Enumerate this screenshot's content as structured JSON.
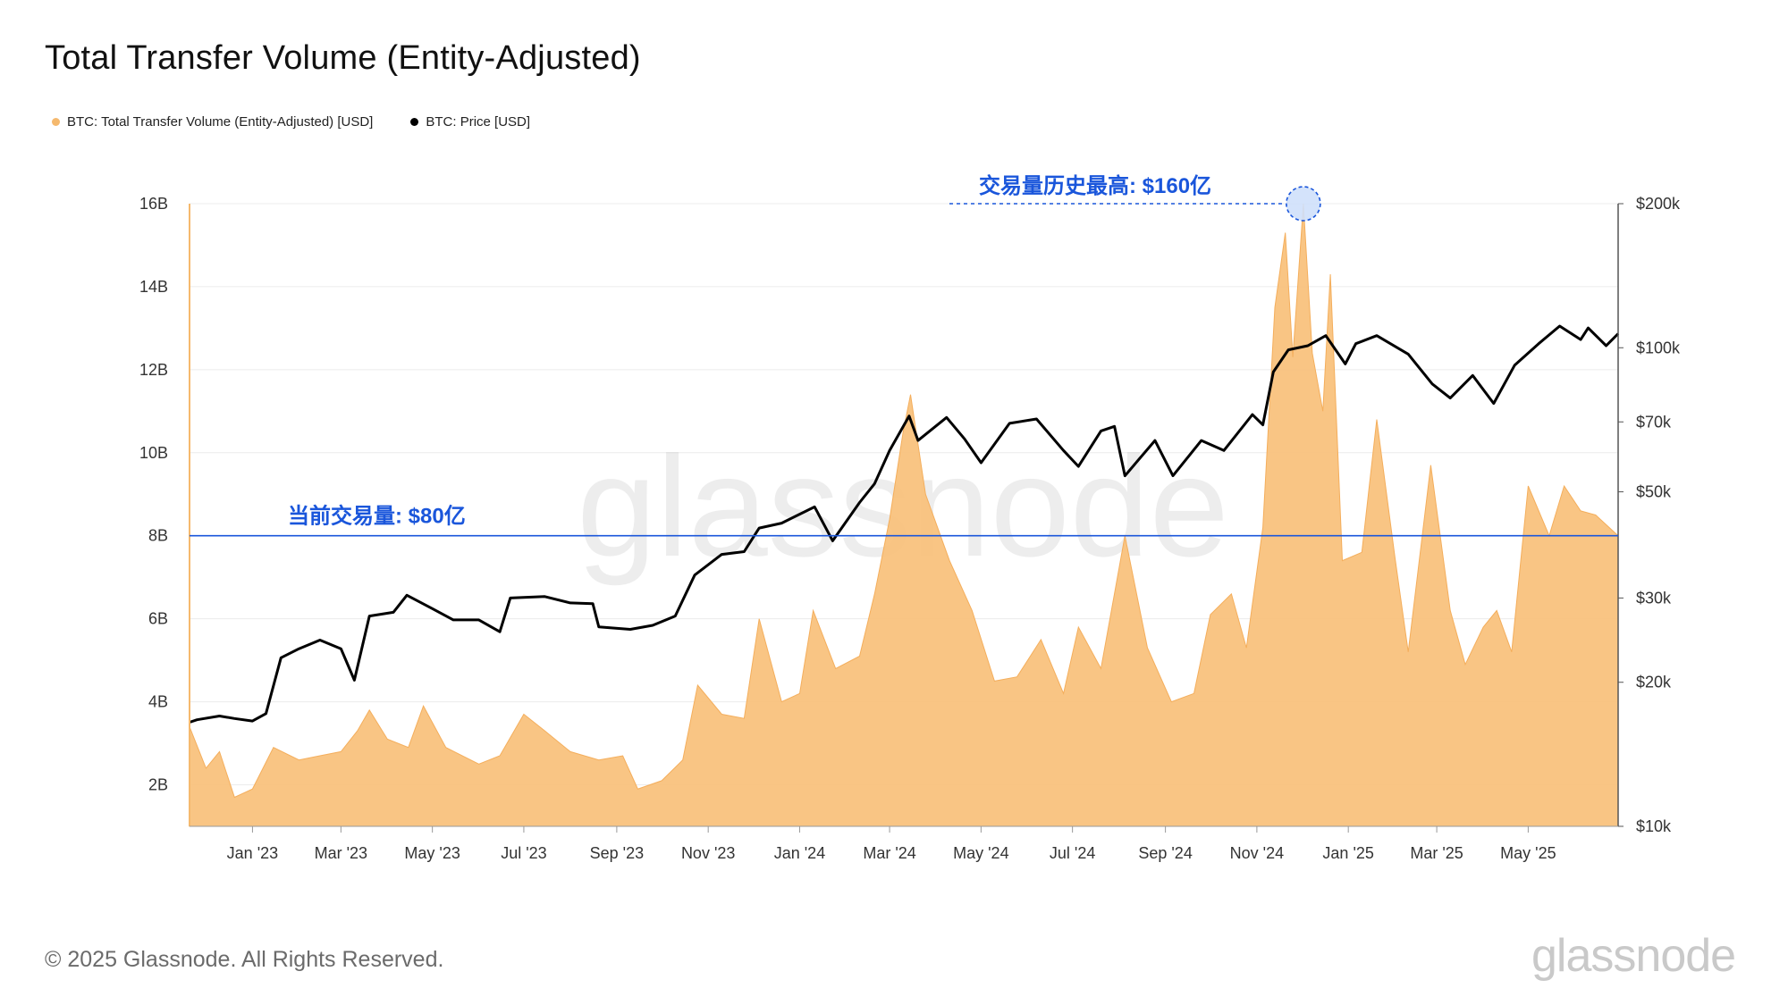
{
  "title": "Total Transfer Volume (Entity-Adjusted)",
  "legend": [
    {
      "label": "BTC: Total Transfer Volume (Entity-Adjusted) [USD]",
      "color": "#f5b96e"
    },
    {
      "label": "BTC: Price [USD]",
      "color": "#000000"
    }
  ],
  "footer": "© 2025 Glassnode. All Rights Reserved.",
  "watermark": "glassnode",
  "chart_data": {
    "type": "area",
    "x_ticks": [
      "Jan '23",
      "Mar '23",
      "May '23",
      "Jul '23",
      "Sep '23",
      "Nov '23",
      "Jan '24",
      "Mar '24",
      "May '24",
      "Jul '24",
      "Sep '24",
      "Nov '24",
      "Jan '25",
      "Mar '25",
      "May '25"
    ],
    "y_left_ticks": [
      "2B",
      "4B",
      "6B",
      "8B",
      "10B",
      "12B",
      "14B",
      "16B"
    ],
    "y_left_range": [
      1,
      16
    ],
    "y_right_ticks": [
      {
        "label": "$10k",
        "value": 10000
      },
      {
        "label": "$20k",
        "value": 20000
      },
      {
        "label": "$30k",
        "value": 30000
      },
      {
        "label": "$50k",
        "value": 50000
      },
      {
        "label": "$70k",
        "value": 70000
      },
      {
        "label": "$100k",
        "value": 100000
      },
      {
        "label": "$200k",
        "value": 200000
      }
    ],
    "y_right_scale": "log",
    "grid": true,
    "legend_position": "top-left",
    "x_start": "2022-11-20",
    "x_end": "2025-06-30",
    "series": [
      {
        "name": "BTC: Total Transfer Volume (Entity-Adjusted) [USD]",
        "axis": "left",
        "unit": "B USD",
        "color": "#f8c07a",
        "points": [
          [
            "2022-11-20",
            3.4
          ],
          [
            "2022-12-01",
            2.4
          ],
          [
            "2022-12-10",
            2.8
          ],
          [
            "2022-12-20",
            1.7
          ],
          [
            "2023-01-01",
            1.9
          ],
          [
            "2023-01-15",
            2.9
          ],
          [
            "2023-02-01",
            2.6
          ],
          [
            "2023-02-15",
            2.7
          ],
          [
            "2023-03-01",
            2.8
          ],
          [
            "2023-03-12",
            3.3
          ],
          [
            "2023-03-20",
            3.8
          ],
          [
            "2023-04-01",
            3.1
          ],
          [
            "2023-04-15",
            2.9
          ],
          [
            "2023-04-25",
            3.9
          ],
          [
            "2023-05-10",
            2.9
          ],
          [
            "2023-06-01",
            2.5
          ],
          [
            "2023-06-15",
            2.7
          ],
          [
            "2023-07-01",
            3.7
          ],
          [
            "2023-07-15",
            3.3
          ],
          [
            "2023-08-01",
            2.8
          ],
          [
            "2023-08-20",
            2.6
          ],
          [
            "2023-09-05",
            2.7
          ],
          [
            "2023-09-15",
            1.9
          ],
          [
            "2023-10-01",
            2.1
          ],
          [
            "2023-10-15",
            2.6
          ],
          [
            "2023-10-25",
            4.4
          ],
          [
            "2023-11-10",
            3.7
          ],
          [
            "2023-11-25",
            3.6
          ],
          [
            "2023-12-05",
            6.0
          ],
          [
            "2023-12-20",
            4.0
          ],
          [
            "2024-01-01",
            4.2
          ],
          [
            "2024-01-10",
            6.2
          ],
          [
            "2024-01-25",
            4.8
          ],
          [
            "2024-02-10",
            5.1
          ],
          [
            "2024-02-20",
            6.6
          ],
          [
            "2024-03-01",
            8.4
          ],
          [
            "2024-03-10",
            10.5
          ],
          [
            "2024-03-15",
            11.4
          ],
          [
            "2024-03-25",
            9.0
          ],
          [
            "2024-04-10",
            7.4
          ],
          [
            "2024-04-25",
            6.2
          ],
          [
            "2024-05-10",
            4.5
          ],
          [
            "2024-05-25",
            4.6
          ],
          [
            "2024-06-10",
            5.5
          ],
          [
            "2024-06-25",
            4.2
          ],
          [
            "2024-07-05",
            5.8
          ],
          [
            "2024-07-20",
            4.8
          ],
          [
            "2024-08-05",
            8.0
          ],
          [
            "2024-08-20",
            5.3
          ],
          [
            "2024-09-05",
            4.0
          ],
          [
            "2024-09-20",
            4.2
          ],
          [
            "2024-10-01",
            6.1
          ],
          [
            "2024-10-15",
            6.6
          ],
          [
            "2024-10-25",
            5.3
          ],
          [
            "2024-11-05",
            8.2
          ],
          [
            "2024-11-13",
            13.5
          ],
          [
            "2024-11-20",
            15.3
          ],
          [
            "2024-11-25",
            12.3
          ],
          [
            "2024-12-02",
            16.0
          ],
          [
            "2024-12-08",
            12.4
          ],
          [
            "2024-12-15",
            11.0
          ],
          [
            "2024-12-20",
            14.3
          ],
          [
            "2024-12-28",
            7.4
          ],
          [
            "2025-01-10",
            7.6
          ],
          [
            "2025-01-20",
            10.8
          ],
          [
            "2025-02-01",
            7.5
          ],
          [
            "2025-02-10",
            5.2
          ],
          [
            "2025-02-25",
            9.7
          ],
          [
            "2025-03-10",
            6.2
          ],
          [
            "2025-03-20",
            4.9
          ],
          [
            "2025-04-01",
            5.8
          ],
          [
            "2025-04-10",
            6.2
          ],
          [
            "2025-04-20",
            5.2
          ],
          [
            "2025-05-01",
            9.2
          ],
          [
            "2025-05-15",
            8.0
          ],
          [
            "2025-05-25",
            9.2
          ],
          [
            "2025-06-05",
            8.6
          ],
          [
            "2025-06-15",
            8.5
          ],
          [
            "2025-06-30",
            8.0
          ]
        ]
      },
      {
        "name": "BTC: Price [USD]",
        "axis": "right",
        "unit": "USD",
        "color": "#000000",
        "points": [
          [
            "2022-11-20",
            16500
          ],
          [
            "2022-11-25",
            16700
          ],
          [
            "2022-12-10",
            17000
          ],
          [
            "2022-12-20",
            16800
          ],
          [
            "2023-01-01",
            16600
          ],
          [
            "2023-01-10",
            17200
          ],
          [
            "2023-01-20",
            22500
          ],
          [
            "2023-02-01",
            23500
          ],
          [
            "2023-02-15",
            24500
          ],
          [
            "2023-03-01",
            23500
          ],
          [
            "2023-03-10",
            20200
          ],
          [
            "2023-03-20",
            27500
          ],
          [
            "2023-04-05",
            28000
          ],
          [
            "2023-04-14",
            30400
          ],
          [
            "2023-05-01",
            28500
          ],
          [
            "2023-05-15",
            27000
          ],
          [
            "2023-06-01",
            27000
          ],
          [
            "2023-06-15",
            25500
          ],
          [
            "2023-06-22",
            30000
          ],
          [
            "2023-07-15",
            30200
          ],
          [
            "2023-08-01",
            29300
          ],
          [
            "2023-08-16",
            29200
          ],
          [
            "2023-08-20",
            26100
          ],
          [
            "2023-09-10",
            25800
          ],
          [
            "2023-09-25",
            26300
          ],
          [
            "2023-10-10",
            27500
          ],
          [
            "2023-10-23",
            33500
          ],
          [
            "2023-11-10",
            37000
          ],
          [
            "2023-11-25",
            37500
          ],
          [
            "2023-12-05",
            42000
          ],
          [
            "2023-12-20",
            43000
          ],
          [
            "2024-01-11",
            46500
          ],
          [
            "2024-01-23",
            39500
          ],
          [
            "2024-02-10",
            47500
          ],
          [
            "2024-02-20",
            52000
          ],
          [
            "2024-03-01",
            61000
          ],
          [
            "2024-03-14",
            72000
          ],
          [
            "2024-03-20",
            64000
          ],
          [
            "2024-04-08",
            71500
          ],
          [
            "2024-04-20",
            64500
          ],
          [
            "2024-05-01",
            57500
          ],
          [
            "2024-05-20",
            69500
          ],
          [
            "2024-06-07",
            71000
          ],
          [
            "2024-06-25",
            61000
          ],
          [
            "2024-07-05",
            56500
          ],
          [
            "2024-07-20",
            67000
          ],
          [
            "2024-07-29",
            68500
          ],
          [
            "2024-08-05",
            54000
          ],
          [
            "2024-08-25",
            64000
          ],
          [
            "2024-09-06",
            54000
          ],
          [
            "2024-09-25",
            64000
          ],
          [
            "2024-10-10",
            61000
          ],
          [
            "2024-10-29",
            72500
          ],
          [
            "2024-11-05",
            69000
          ],
          [
            "2024-11-12",
            89000
          ],
          [
            "2024-11-22",
            99000
          ],
          [
            "2024-12-05",
            101000
          ],
          [
            "2024-12-17",
            106000
          ],
          [
            "2024-12-30",
            92500
          ],
          [
            "2025-01-06",
            102000
          ],
          [
            "2025-01-20",
            106000
          ],
          [
            "2025-02-10",
            97000
          ],
          [
            "2025-02-26",
            84000
          ],
          [
            "2025-03-10",
            78500
          ],
          [
            "2025-03-25",
            87500
          ],
          [
            "2025-04-08",
            76500
          ],
          [
            "2025-04-22",
            92000
          ],
          [
            "2025-05-08",
            102000
          ],
          [
            "2025-05-22",
            111000
          ],
          [
            "2025-06-05",
            104000
          ],
          [
            "2025-06-10",
            110000
          ],
          [
            "2025-06-22",
            101000
          ],
          [
            "2025-06-30",
            107000
          ]
        ]
      }
    ],
    "annotations": {
      "ath": {
        "text": "交易量历史最高: $160亿",
        "date": "2024-12-02",
        "value": 16.0
      },
      "current": {
        "text": "当前交易量: $80亿",
        "value": 8.0
      }
    }
  }
}
